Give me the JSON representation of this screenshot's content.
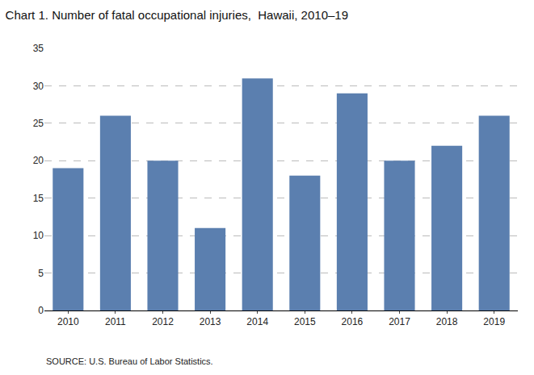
{
  "chart_data": {
    "type": "bar",
    "title": "Chart 1. Number of fatal occupational injuries,  Hawaii, 2010–19",
    "source": "SOURCE: U.S. Bureau of Labor Statistics.",
    "categories": [
      "2010",
      "2011",
      "2012",
      "2013",
      "2014",
      "2015",
      "2016",
      "2017",
      "2018",
      "2019"
    ],
    "values": [
      19,
      26,
      20,
      11,
      31,
      18,
      29,
      20,
      22,
      26
    ],
    "color": "#5B7FAF",
    "ylim": [
      0,
      35
    ],
    "yticks": [
      0,
      5,
      10,
      15,
      20,
      25,
      30,
      35
    ],
    "grid": true
  }
}
